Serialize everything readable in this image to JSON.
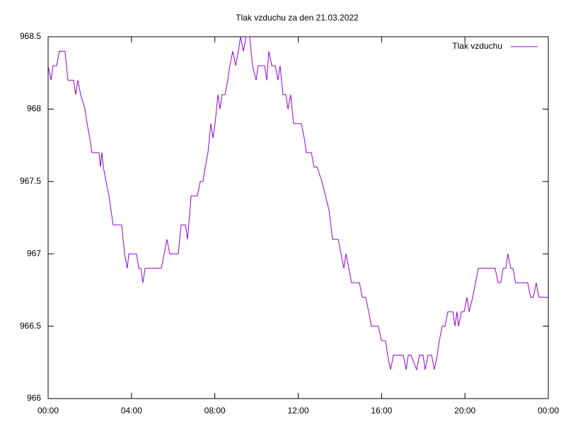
{
  "chart_data": {
    "type": "line",
    "title": "Tlak vzduchu za den 21.03.2022",
    "x": [
      0,
      0.14,
      0.24,
      0.41,
      0.54,
      0.81,
      0.95,
      1.22,
      1.32,
      1.43,
      1.56,
      1.77,
      1.87,
      2.0,
      2.1,
      2.44,
      2.51,
      2.58,
      2.65,
      2.78,
      2.92,
      3.02,
      3.12,
      3.53,
      3.67,
      3.8,
      3.87,
      4.24,
      4.35,
      4.45,
      4.55,
      4.65,
      5.43,
      5.57,
      5.7,
      5.84,
      6.25,
      6.38,
      6.59,
      6.69,
      6.86,
      7.16,
      7.3,
      7.43,
      7.54,
      7.67,
      7.81,
      7.91,
      8.01,
      8.15,
      8.25,
      8.35,
      8.49,
      8.62,
      8.72,
      8.86,
      9.0,
      9.13,
      9.23,
      9.37,
      9.5,
      9.67,
      9.81,
      9.98,
      10.08,
      10.39,
      10.49,
      10.59,
      10.73,
      10.9,
      11.03,
      11.13,
      11.27,
      11.41,
      11.51,
      11.64,
      11.78,
      12.15,
      12.29,
      12.39,
      12.63,
      12.76,
      12.9,
      13.14,
      13.31,
      13.48,
      13.65,
      13.92,
      14.05,
      14.19,
      14.29,
      14.43,
      14.56,
      14.94,
      15.07,
      15.24,
      15.38,
      15.51,
      15.85,
      15.99,
      16.19,
      16.29,
      16.43,
      16.57,
      17.04,
      17.18,
      17.28,
      17.41,
      17.68,
      17.82,
      17.99,
      18.09,
      18.23,
      18.4,
      18.53,
      18.67,
      18.77,
      18.91,
      19.04,
      19.18,
      19.42,
      19.52,
      19.62,
      19.69,
      19.83,
      19.96,
      20.1,
      20.2,
      20.37,
      20.51,
      20.64,
      21.45,
      21.59,
      21.72,
      21.83,
      21.96,
      22.06,
      22.2,
      22.3,
      22.43,
      23.01,
      23.15,
      23.28,
      23.42,
      23.55,
      24
    ],
    "series": [
      {
        "name": "Tlak vzduchu",
        "color": "#9400d3",
        "values": [
          968.3,
          968.2,
          968.3,
          968.3,
          968.4,
          968.4,
          968.2,
          968.2,
          968.1,
          968.2,
          968.1,
          968.0,
          967.9,
          967.8,
          967.7,
          967.7,
          967.6,
          967.7,
          967.6,
          967.5,
          967.4,
          967.3,
          967.2,
          967.2,
          967.0,
          966.9,
          967.0,
          967.0,
          966.9,
          966.9,
          966.8,
          966.9,
          966.9,
          967.0,
          967.1,
          967.0,
          967.0,
          967.2,
          967.2,
          967.1,
          967.4,
          967.4,
          967.5,
          967.5,
          967.6,
          967.7,
          967.9,
          967.8,
          967.9,
          968.1,
          968.0,
          968.1,
          968.1,
          968.2,
          968.3,
          968.4,
          968.3,
          968.4,
          968.5,
          968.4,
          968.5,
          968.5,
          968.3,
          968.2,
          968.3,
          968.3,
          968.2,
          968.4,
          968.3,
          968.3,
          968.2,
          968.3,
          968.1,
          968.1,
          968.0,
          968.1,
          967.9,
          967.9,
          967.8,
          967.7,
          967.7,
          967.6,
          967.6,
          967.5,
          967.4,
          967.3,
          967.1,
          967.1,
          967.0,
          966.9,
          967.0,
          966.9,
          966.8,
          966.8,
          966.7,
          966.7,
          966.6,
          966.5,
          966.5,
          966.4,
          966.4,
          966.3,
          966.2,
          966.3,
          966.3,
          966.2,
          966.3,
          966.3,
          966.2,
          966.3,
          966.3,
          966.2,
          966.3,
          966.3,
          966.2,
          966.3,
          966.4,
          966.5,
          966.5,
          966.6,
          966.6,
          966.5,
          966.6,
          966.5,
          966.6,
          966.6,
          966.7,
          966.6,
          966.7,
          966.8,
          966.9,
          966.9,
          966.8,
          966.8,
          966.9,
          966.9,
          967.0,
          966.9,
          966.9,
          966.8,
          966.8,
          966.7,
          966.7,
          966.8,
          966.7,
          966.7
        ]
      }
    ],
    "xlim": [
      0,
      24
    ],
    "xticks": [
      {
        "value": 0,
        "label": "00:00"
      },
      {
        "value": 4,
        "label": "04:00"
      },
      {
        "value": 8,
        "label": "08:00"
      },
      {
        "value": 12,
        "label": "12:00"
      },
      {
        "value": 16,
        "label": "16:00"
      },
      {
        "value": 20,
        "label": "20:00"
      },
      {
        "value": 24,
        "label": "00:00"
      }
    ],
    "ylim": [
      966,
      968.5
    ],
    "yticks": [
      966,
      966.5,
      967,
      967.5,
      968,
      968.5
    ],
    "legend": "top-right"
  }
}
